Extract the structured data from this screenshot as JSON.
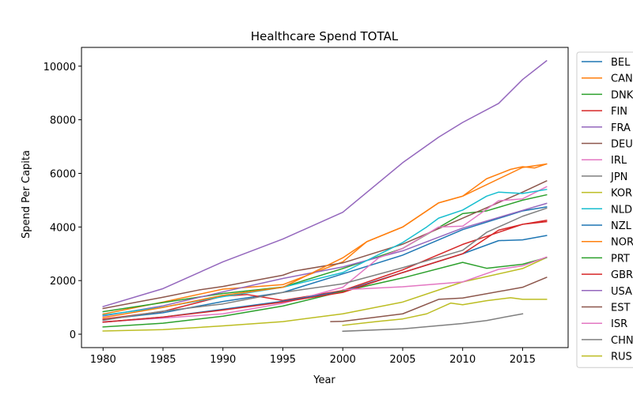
{
  "chart_data": {
    "type": "line",
    "title": "Healthcare Spend TOTAL",
    "xlabel": "Year",
    "ylabel": "Spend Per Capita",
    "xlim": [
      1978.2,
      2018.8
    ],
    "ylim": [
      -500,
      10700
    ],
    "xticks": [
      1980,
      1985,
      1990,
      1995,
      2000,
      2005,
      2010,
      2015
    ],
    "yticks": [
      0,
      2000,
      4000,
      6000,
      8000,
      10000
    ],
    "grid": false,
    "legend_position": "right-outside",
    "series": [
      {
        "name": "BEL",
        "color": "#1f77b4",
        "x": [
          1980,
          1985,
          1990,
          1995,
          2000,
          2005,
          2010,
          2015,
          2017
        ],
        "y": [
          550,
          800,
          1220,
          1560,
          2250,
          2950,
          3900,
          4600,
          4750
        ]
      },
      {
        "name": "CAN",
        "color": "#ff7f0e",
        "x": [
          1980,
          1985,
          1990,
          1995,
          2000,
          2002,
          2005,
          2007,
          2008,
          2010,
          2012,
          2014,
          2015,
          2016,
          2017
        ],
        "y": [
          750,
          1200,
          1680,
          1850,
          2700,
          3450,
          4000,
          4600,
          4900,
          5150,
          5800,
          6150,
          6250,
          6200,
          6350
        ]
      },
      {
        "name": "DNK",
        "color": "#2ca02c",
        "x": [
          1980,
          1985,
          1990,
          1995,
          2000,
          2005,
          2010,
          2012,
          2015,
          2017
        ],
        "y": [
          840,
          1180,
          1520,
          1760,
          2450,
          3200,
          4500,
          4600,
          5000,
          5200
        ]
      },
      {
        "name": "FIN",
        "color": "#d62728",
        "x": [
          1980,
          1985,
          1990,
          1992,
          1995,
          2000,
          2005,
          2010,
          2015,
          2017
        ],
        "y": [
          560,
          850,
          1420,
          1480,
          1260,
          1630,
          2400,
          3350,
          4100,
          4250
        ]
      },
      {
        "name": "FRA",
        "color": "#9467bd",
        "x": [
          1980,
          1985,
          1990,
          1995,
          2000,
          2005,
          2010,
          2015,
          2017
        ],
        "y": [
          680,
          1060,
          1580,
          2080,
          2510,
          3110,
          3960,
          4620,
          4880
        ]
      },
      {
        "name": "DEU",
        "color": "#8c564b",
        "x": [
          1980,
          1985,
          1988,
          1990,
          1992,
          1995,
          1996,
          2000,
          2005,
          2010,
          2015,
          2017
        ],
        "y": [
          960,
          1380,
          1650,
          1780,
          1950,
          2200,
          2360,
          2660,
          3360,
          4330,
          5300,
          5720
        ]
      },
      {
        "name": "IRL",
        "color": "#e377c2",
        "x": [
          1980,
          1985,
          1990,
          1995,
          2000,
          2003,
          2005,
          2008,
          2010,
          2013,
          2015,
          2017
        ],
        "y": [
          460,
          600,
          760,
          1150,
          1750,
          2850,
          3200,
          4000,
          4030,
          4980,
          5050,
          5500
        ]
      },
      {
        "name": "JPN",
        "color": "#7f7f7f",
        "x": [
          1980,
          1985,
          1990,
          1995,
          2000,
          2005,
          2010,
          2012,
          2015,
          2017
        ],
        "y": [
          520,
          860,
          1130,
          1560,
          1880,
          2480,
          3130,
          3800,
          4400,
          4700
        ]
      },
      {
        "name": "KOR",
        "color": "#bcbd22",
        "x": [
          1980,
          1985,
          1990,
          1995,
          2000,
          2005,
          2010,
          2015,
          2017
        ],
        "y": [
          120,
          170,
          310,
          470,
          760,
          1200,
          1950,
          2450,
          2860
        ]
      },
      {
        "name": "NLD",
        "color": "#17becf",
        "x": [
          1980,
          1985,
          1990,
          1995,
          2000,
          2005,
          2007,
          2008,
          2010,
          2012,
          2013,
          2015,
          2017
        ],
        "y": [
          710,
          1010,
          1400,
          1750,
          2300,
          3420,
          4000,
          4330,
          4630,
          5150,
          5300,
          5250,
          5400
        ]
      },
      {
        "name": "NZL",
        "color": "#1f77b4",
        "x": [
          1980,
          1985,
          1990,
          1995,
          2000,
          2005,
          2010,
          2013,
          2015,
          2017
        ],
        "y": [
          450,
          640,
          930,
          1230,
          1600,
          2300,
          3000,
          3490,
          3520,
          3680
        ]
      },
      {
        "name": "NOR",
        "color": "#ff7f0e",
        "x": [
          1980,
          1985,
          1990,
          1995,
          2000,
          2002,
          2005,
          2008,
          2010,
          2015,
          2017
        ],
        "y": [
          620,
          1000,
          1450,
          1750,
          2850,
          3450,
          4000,
          4900,
          5150,
          6220,
          6350
        ]
      },
      {
        "name": "PRT",
        "color": "#2ca02c",
        "x": [
          1980,
          1985,
          1990,
          1995,
          2000,
          2005,
          2010,
          2012,
          2015,
          2017
        ],
        "y": [
          270,
          410,
          670,
          1050,
          1600,
          2100,
          2680,
          2460,
          2610,
          2860
        ]
      },
      {
        "name": "GBR",
        "color": "#d62728",
        "x": [
          1980,
          1985,
          1990,
          1995,
          2000,
          2005,
          2010,
          2013,
          2015,
          2017
        ],
        "y": [
          450,
          640,
          900,
          1200,
          1560,
          2300,
          3000,
          3880,
          4100,
          4200
        ]
      },
      {
        "name": "USA",
        "color": "#9467bd",
        "x": [
          1980,
          1985,
          1990,
          1995,
          2000,
          2005,
          2008,
          2010,
          2013,
          2015,
          2017
        ],
        "y": [
          1030,
          1700,
          2700,
          3550,
          4550,
          6400,
          7350,
          7900,
          8610,
          9500,
          10200
        ]
      },
      {
        "name": "EST",
        "color": "#8c564b",
        "x": [
          1999,
          2000,
          2005,
          2008,
          2010,
          2015,
          2017
        ],
        "y": [
          470,
          480,
          760,
          1300,
          1350,
          1750,
          2120
        ]
      },
      {
        "name": "ISR",
        "color": "#e377c2",
        "x": [
          2000,
          2005,
          2010,
          2013,
          2015,
          2017
        ],
        "y": [
          1660,
          1770,
          1950,
          2420,
          2550,
          2880
        ]
      },
      {
        "name": "CHN",
        "color": "#7f7f7f",
        "x": [
          2000,
          2005,
          2010,
          2012,
          2014,
          2015
        ],
        "y": [
          110,
          200,
          400,
          510,
          680,
          760
        ]
      },
      {
        "name": "RUS",
        "color": "#bcbd22",
        "x": [
          2000,
          2003,
          2005,
          2007,
          2009,
          2010,
          2012,
          2014,
          2015,
          2017
        ],
        "y": [
          330,
          480,
          570,
          760,
          1160,
          1100,
          1250,
          1360,
          1300,
          1300
        ]
      }
    ]
  }
}
